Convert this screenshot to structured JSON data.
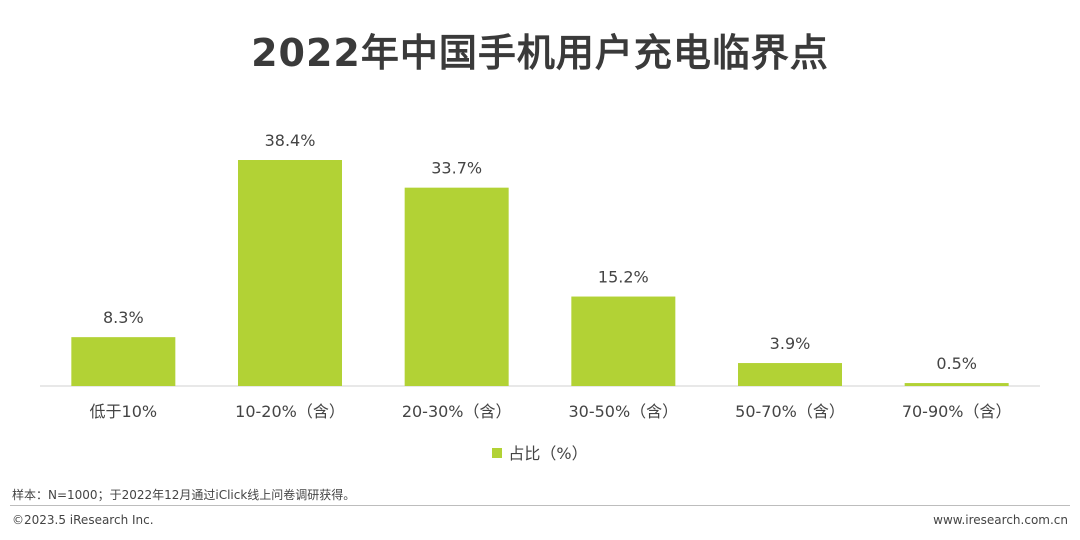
{
  "title": "2022年中国手机用户充电临界点",
  "legend": {
    "label": "占比（%）"
  },
  "colors": {
    "bar": "#b2d235",
    "axis": "#d0d0d0"
  },
  "chart_data": {
    "type": "bar",
    "title": "2022年中国手机用户充电临界点",
    "categories": [
      "低于10%",
      "10-20%（含）",
      "20-30%（含）",
      "30-50%（含）",
      "50-70%（含）",
      "70-90%（含）"
    ],
    "series": [
      {
        "name": "占比（%）",
        "values": [
          8.3,
          38.4,
          33.7,
          15.2,
          3.9,
          0.5
        ]
      }
    ],
    "value_labels": [
      "8.3%",
      "38.4%",
      "33.7%",
      "15.2%",
      "3.9%",
      "0.5%"
    ],
    "ylim": [
      0,
      40
    ],
    "grid": false,
    "legend_position": "bottom"
  },
  "note": "样本：N=1000；于2022年12月通过iClick线上问卷调研获得。",
  "footer": {
    "copyright": "©2023.5 iResearch Inc.",
    "website": "www.iresearch.com.cn"
  }
}
